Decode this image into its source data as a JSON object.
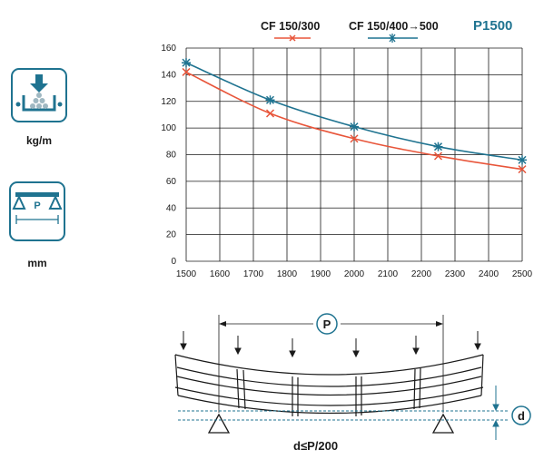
{
  "icons": {
    "load_label": "kg/m",
    "span_label": "mm",
    "span_symbol": "P"
  },
  "legend": {
    "title": "P1500",
    "series_1": "CF 150/300",
    "series_2": "CF 150/400→500"
  },
  "chart_data": {
    "type": "line",
    "title": "P1500",
    "xlabel": "",
    "ylabel": "",
    "xlim": [
      1500,
      2500
    ],
    "ylim": [
      0,
      160
    ],
    "x_ticks": [
      1500,
      1600,
      1700,
      1800,
      1900,
      2000,
      2100,
      2200,
      2300,
      2400,
      2500
    ],
    "y_ticks": [
      0,
      20,
      40,
      60,
      80,
      100,
      120,
      140,
      160
    ],
    "grid": true,
    "legend_position": "top",
    "series": [
      {
        "name": "CF 150/300",
        "color": "#e8553a",
        "marker": "x",
        "x": [
          1500,
          1750,
          2000,
          2250,
          2500
        ],
        "y": [
          142,
          111,
          92,
          79,
          69
        ]
      },
      {
        "name": "CF 150/400→500",
        "color": "#1f7390",
        "marker": "asterisk",
        "x": [
          1500,
          1750,
          2000,
          2250,
          2500
        ],
        "y": [
          149,
          121,
          101,
          86,
          76
        ]
      }
    ]
  },
  "diagram": {
    "span_symbol": "P",
    "deflection_symbol": "d",
    "formula": "d≤P/200"
  }
}
